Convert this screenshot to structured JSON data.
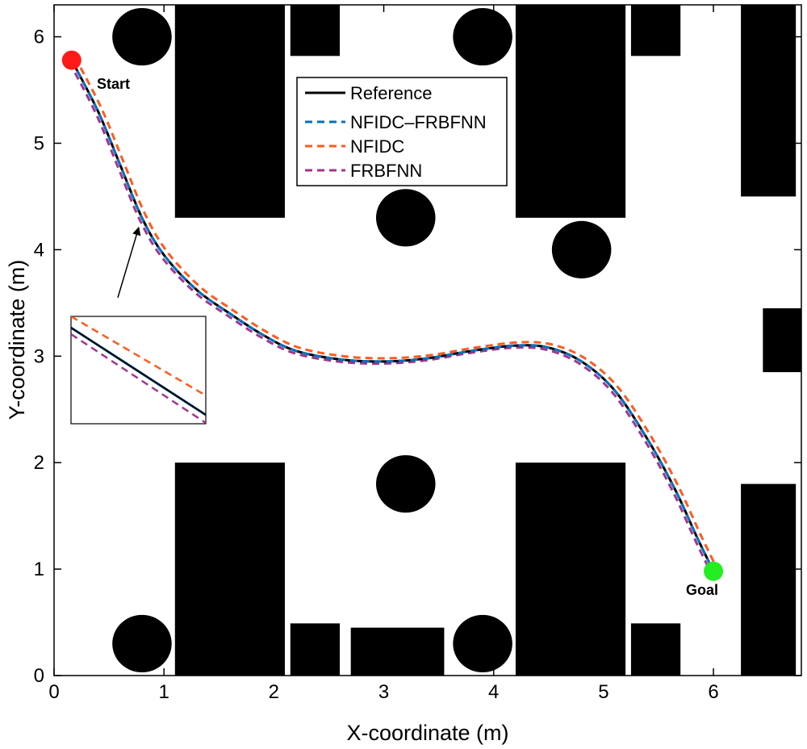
{
  "chart_data": {
    "type": "line",
    "title": "",
    "xlabel": "X-coordinate (m)",
    "ylabel": "Y-coordinate (m)",
    "xlim": [
      0,
      6.8
    ],
    "ylim": [
      0,
      6.3
    ],
    "xticks": [
      0,
      1,
      2,
      3,
      4,
      5,
      6
    ],
    "yticks": [
      0,
      1,
      2,
      3,
      4,
      5,
      6
    ],
    "grid": false,
    "legend_position": "top-center",
    "series": [
      {
        "name": "Reference",
        "color": "#000000",
        "style": "solid",
        "offset": [
          0,
          0
        ]
      },
      {
        "name": "NFIDC–FRBFNN",
        "color": "#0072BD",
        "style": "dashed",
        "offset": [
          0,
          0
        ]
      },
      {
        "name": "NFIDC",
        "color": "#FF5A1E",
        "style": "dashed",
        "offset": [
          0.03,
          0.03
        ]
      },
      {
        "name": "FRBFNN",
        "color": "#A2358F",
        "style": "dashed",
        "offset": [
          -0.02,
          -0.02
        ]
      }
    ],
    "path": {
      "x": [
        0.16,
        0.4,
        0.6,
        0.8,
        1.0,
        1.3,
        1.6,
        1.9,
        2.2,
        2.6,
        3.0,
        3.4,
        3.8,
        4.2,
        4.5,
        4.8,
        5.1,
        5.4,
        5.65,
        5.85,
        6.0
      ],
      "y": [
        5.78,
        5.3,
        4.8,
        4.3,
        3.95,
        3.62,
        3.4,
        3.2,
        3.05,
        2.97,
        2.95,
        2.98,
        3.05,
        3.1,
        3.08,
        2.95,
        2.68,
        2.22,
        1.75,
        1.3,
        0.98
      ]
    },
    "start": {
      "label": "Start",
      "x": 0.16,
      "y": 5.78,
      "color": "#FF1A1A"
    },
    "goal": {
      "label": "Goal",
      "x": 6.0,
      "y": 0.98,
      "color": "#22EE22"
    },
    "obstacles": {
      "rectangles": [
        {
          "x0": 1.1,
          "x1": 2.1,
          "y0": 4.3,
          "y1": 6.3
        },
        {
          "x0": 2.15,
          "x1": 2.6,
          "y0": 5.82,
          "y1": 6.3
        },
        {
          "x0": 4.2,
          "x1": 5.2,
          "y0": 4.3,
          "y1": 6.3
        },
        {
          "x0": 5.25,
          "x1": 5.7,
          "y0": 5.82,
          "y1": 6.3
        },
        {
          "x0": 6.25,
          "x1": 6.75,
          "y0": 4.5,
          "y1": 6.3
        },
        {
          "x0": 6.45,
          "x1": 6.8,
          "y0": 2.85,
          "y1": 3.45
        },
        {
          "x0": 1.1,
          "x1": 2.1,
          "y0": 0.0,
          "y1": 2.0
        },
        {
          "x0": 2.15,
          "x1": 2.6,
          "y0": 0.0,
          "y1": 0.49
        },
        {
          "x0": 2.7,
          "x1": 3.55,
          "y0": 0.0,
          "y1": 0.45
        },
        {
          "x0": 4.2,
          "x1": 5.2,
          "y0": 0.0,
          "y1": 2.0
        },
        {
          "x0": 5.25,
          "x1": 5.7,
          "y0": 0.0,
          "y1": 0.49
        },
        {
          "x0": 6.25,
          "x1": 6.75,
          "y0": 0.0,
          "y1": 1.8
        }
      ],
      "circles": [
        {
          "cx": 0.8,
          "cy": 6.0,
          "r": 0.27
        },
        {
          "cx": 3.9,
          "cy": 6.0,
          "r": 0.27
        },
        {
          "cx": 3.2,
          "cy": 4.3,
          "r": 0.27
        },
        {
          "cx": 4.8,
          "cy": 4.0,
          "r": 0.27
        },
        {
          "cx": 3.2,
          "cy": 1.8,
          "r": 0.27
        },
        {
          "cx": 0.8,
          "cy": 0.3,
          "r": 0.27
        },
        {
          "cx": 3.9,
          "cy": 0.3,
          "r": 0.27
        }
      ]
    },
    "inset": {
      "target": {
        "x": 0.8,
        "y": 4.3
      },
      "arrow_from": {
        "x": 0.58,
        "y": 3.55
      }
    }
  }
}
